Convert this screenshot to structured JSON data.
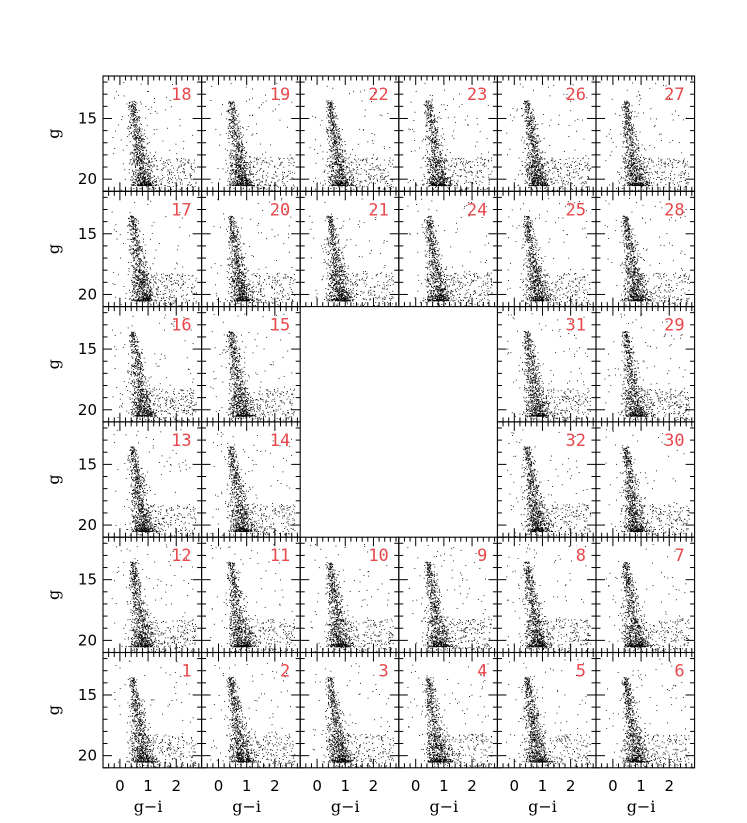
{
  "chart_data": {
    "type": "scatter",
    "layout": {
      "rows": 6,
      "cols": 6,
      "empty_cells": [
        [
          2,
          2
        ],
        [
          2,
          3
        ],
        [
          3,
          2
        ],
        [
          3,
          3
        ]
      ]
    },
    "panel_ids": [
      [
        "18",
        "19",
        "22",
        "23",
        "26",
        "27"
      ],
      [
        "17",
        "20",
        "21",
        "24",
        "25",
        "28"
      ],
      [
        "16",
        "15",
        "",
        "",
        "31",
        "29"
      ],
      [
        "13",
        "14",
        "",
        "",
        "32",
        "30"
      ],
      [
        "12",
        "11",
        "10",
        "9",
        "8",
        "7"
      ],
      [
        "1",
        "2",
        "3",
        "4",
        "5",
        "6"
      ]
    ],
    "xlabel": "g−i",
    "ylabel": "g",
    "xlim": [
      -0.6,
      2.9
    ],
    "ylim": [
      21.0,
      11.5
    ],
    "x_ticks": [
      0,
      1,
      2
    ],
    "x_tick_labels": [
      "0",
      "1",
      "2"
    ],
    "y_ticks": [
      15,
      20
    ],
    "y_tick_labels": [
      "15",
      "20"
    ],
    "id_color": "#e8474b",
    "point_color": "#000000",
    "distribution": {
      "main_sequence_turnoff_color": 0.75,
      "main_sequence_faint_mag": 20.5,
      "main_sequence_bright_mag": 13.5
    }
  }
}
